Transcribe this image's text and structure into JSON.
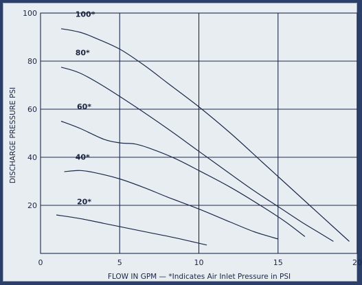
{
  "colors": {
    "background": "#2b3f68",
    "plot_bg": "#e8edf2",
    "line": "#1b2a4a",
    "text": "#1b2540"
  },
  "chart_data": {
    "type": "line",
    "title": "",
    "xlabel": "FLOW IN GPM — *Indicates Air Inlet Pressure in PSI",
    "ylabel": "DISCHARGE PRESSURE PSI",
    "xlim": [
      0,
      20
    ],
    "ylim": [
      0,
      100
    ],
    "x_ticks": [
      0,
      5,
      10,
      15,
      20
    ],
    "y_ticks": [
      20,
      40,
      60,
      80,
      100
    ],
    "grid": true,
    "series": [
      {
        "name": "100*",
        "x": [
          1.3,
          2.5,
          3.5,
          5.0,
          6.5,
          8.0,
          10.0,
          12.0,
          14.0,
          15.5,
          17.0,
          18.5,
          19.5
        ],
        "y": [
          93.5,
          92.0,
          89.5,
          85.0,
          78.5,
          71.0,
          61.0,
          50.0,
          38.0,
          29.0,
          20.0,
          11.0,
          5.0
        ]
      },
      {
        "name": "80*",
        "x": [
          1.3,
          2.5,
          4.0,
          6.0,
          8.0,
          10.0,
          12.0,
          13.5,
          15.0,
          16.5,
          17.5,
          18.5
        ],
        "y": [
          77.5,
          75.0,
          69.5,
          61.0,
          52.0,
          42.5,
          33.0,
          26.0,
          19.5,
          13.0,
          9.0,
          5.0
        ]
      },
      {
        "name": "60*",
        "x": [
          1.3,
          2.5,
          4.0,
          5.0,
          6.0,
          7.0,
          8.5,
          10.0,
          12.0,
          14.0,
          15.5,
          16.7
        ],
        "y": [
          55.0,
          52.0,
          47.5,
          46.0,
          45.5,
          43.5,
          39.5,
          34.5,
          27.5,
          19.5,
          13.0,
          7.0
        ]
      },
      {
        "name": "40*",
        "x": [
          1.5,
          2.5,
          3.5,
          5.0,
          6.5,
          8.0,
          10.0,
          12.0,
          13.5,
          15.0
        ],
        "y": [
          34.0,
          34.5,
          33.5,
          31.0,
          27.5,
          23.5,
          18.5,
          13.0,
          9.0,
          6.0
        ]
      },
      {
        "name": "20*",
        "x": [
          1.0,
          2.5,
          4.0,
          5.5,
          7.0,
          8.5,
          9.5,
          10.5
        ],
        "y": [
          16.0,
          14.5,
          12.5,
          10.5,
          8.5,
          6.5,
          5.0,
          3.5
        ]
      }
    ]
  }
}
